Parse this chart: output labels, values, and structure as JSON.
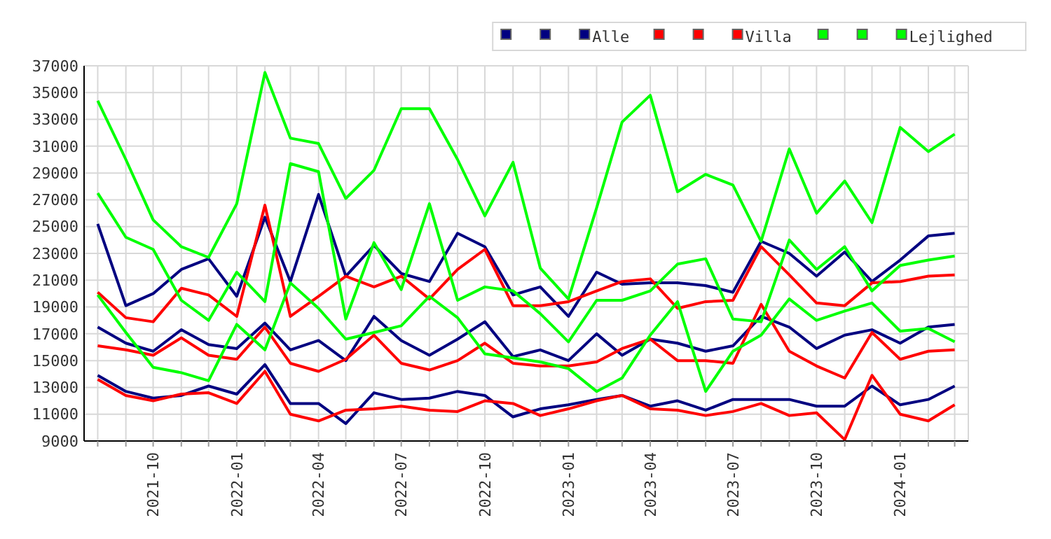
{
  "chart_data": {
    "type": "line",
    "x": [
      "2021-08",
      "2021-09",
      "2021-10",
      "2021-11",
      "2021-12",
      "2022-01",
      "2022-02",
      "2022-03",
      "2022-04",
      "2022-05",
      "2022-06",
      "2022-07",
      "2022-08",
      "2022-09",
      "2022-10",
      "2022-11",
      "2022-12",
      "2023-01",
      "2023-02",
      "2023-03",
      "2023-04",
      "2023-05",
      "2023-06",
      "2023-07",
      "2023-08",
      "2023-09",
      "2023-10",
      "2023-11",
      "2023-12",
      "2024-01",
      "2024-02",
      "2024-03"
    ],
    "series": [
      {
        "color": "#000080",
        "values": [
          25200,
          19100,
          20000,
          21800,
          22600,
          19800,
          25700,
          20900,
          27400,
          21300,
          23600,
          21500,
          20900,
          24500,
          23500,
          19900,
          20500,
          18300,
          21600,
          20700,
          20800,
          20800,
          20600,
          20100,
          23900,
          23000,
          21300,
          23100,
          20900,
          22500,
          24300,
          24500
        ]
      },
      {
        "color": "#000080",
        "values": [
          17500,
          16300,
          15700,
          17300,
          16200,
          15900,
          17800,
          15800,
          16500,
          15000,
          18300,
          16500,
          15400,
          16600,
          17900,
          15300,
          15800,
          15000,
          17000,
          15400,
          16600,
          16300,
          15700,
          16100,
          18300,
          17500,
          15900,
          16900,
          17300,
          16300,
          17500,
          17700
        ]
      },
      {
        "name": "Alle",
        "color": "#000080",
        "values": [
          13900,
          12700,
          12200,
          12400,
          13100,
          12500,
          14700,
          11800,
          11800,
          10300,
          12600,
          12100,
          12200,
          12700,
          12400,
          10800,
          11400,
          11700,
          12100,
          12400,
          11600,
          12000,
          11300,
          12100,
          12100,
          12100,
          11600,
          11600,
          13100,
          11700,
          12100,
          13100
        ]
      },
      {
        "color": "#ff0000",
        "values": [
          20100,
          18200,
          17900,
          20400,
          19900,
          18300,
          26600,
          18300,
          19800,
          21300,
          20500,
          21300,
          19600,
          21800,
          23300,
          19100,
          19100,
          19400,
          20200,
          20900,
          21100,
          18900,
          19400,
          19500,
          23500,
          21400,
          19300,
          19100,
          20800,
          20900,
          21300,
          21400
        ]
      },
      {
        "color": "#ff0000",
        "values": [
          16100,
          15800,
          15400,
          16700,
          15400,
          15100,
          17500,
          14800,
          14200,
          15100,
          16900,
          14800,
          14300,
          15000,
          16300,
          14800,
          14600,
          14600,
          14900,
          15900,
          16600,
          15000,
          15000,
          14800,
          19200,
          15700,
          14600,
          13700,
          17100,
          15100,
          15700,
          15800
        ]
      },
      {
        "name": "Villa",
        "color": "#ff0000",
        "values": [
          13600,
          12400,
          12000,
          12500,
          12600,
          11800,
          14200,
          11000,
          10500,
          11300,
          11400,
          11600,
          11300,
          11200,
          12000,
          11800,
          10900,
          11400,
          12000,
          12400,
          11400,
          11300,
          10900,
          11200,
          11800,
          10900,
          11100,
          9100,
          13900,
          11000,
          10500,
          11700
        ]
      },
      {
        "color": "#00ff00",
        "values": [
          34400,
          30000,
          25500,
          23500,
          22700,
          26700,
          36500,
          31600,
          31200,
          27100,
          29200,
          33800,
          33800,
          30000,
          25800,
          29800,
          21900,
          19600,
          26400,
          32800,
          34800,
          27600,
          28900,
          28100,
          23900,
          30800,
          26000,
          28400,
          25300,
          32400,
          30600,
          31900
        ]
      },
      {
        "color": "#00ff00",
        "values": [
          27500,
          24200,
          23300,
          19500,
          18000,
          21600,
          19400,
          29700,
          29100,
          18100,
          23800,
          20300,
          26700,
          19500,
          20500,
          20200,
          18500,
          16400,
          19500,
          19500,
          20200,
          22200,
          22600,
          18100,
          17900,
          24000,
          21800,
          23500,
          20200,
          22100,
          22500,
          22800
        ]
      },
      {
        "name": "Lejlighed",
        "color": "#00ff00",
        "values": [
          19900,
          17100,
          14500,
          14100,
          13500,
          17700,
          15800,
          20800,
          18900,
          16600,
          17100,
          17600,
          19800,
          18200,
          15500,
          15200,
          14900,
          14400,
          12700,
          13700,
          16900,
          19400,
          12700,
          15700,
          16900,
          19600,
          18000,
          18700,
          19300,
          17200,
          17400,
          16400
        ]
      }
    ],
    "xlim": [
      "2021-07-17",
      "2024-03-16"
    ],
    "xticks": [
      {
        "value": "2021-08",
        "label": null
      },
      {
        "value": "2021-09",
        "label": null
      },
      {
        "value": "2021-10",
        "label": "2021-10"
      },
      {
        "value": "2021-11",
        "label": null
      },
      {
        "value": "2021-12",
        "label": null
      },
      {
        "value": "2022-01",
        "label": "2022-01"
      },
      {
        "value": "2022-02",
        "label": null
      },
      {
        "value": "2022-03",
        "label": null
      },
      {
        "value": "2022-04",
        "label": "2022-04"
      },
      {
        "value": "2022-05",
        "label": null
      },
      {
        "value": "2022-06",
        "label": null
      },
      {
        "value": "2022-07",
        "label": "2022-07"
      },
      {
        "value": "2022-08",
        "label": null
      },
      {
        "value": "2022-09",
        "label": null
      },
      {
        "value": "2022-10",
        "label": "2022-10"
      },
      {
        "value": "2022-11",
        "label": null
      },
      {
        "value": "2022-12",
        "label": null
      },
      {
        "value": "2023-01",
        "label": "2023-01"
      },
      {
        "value": "2023-02",
        "label": null
      },
      {
        "value": "2023-03",
        "label": null
      },
      {
        "value": "2023-04",
        "label": "2023-04"
      },
      {
        "value": "2023-05",
        "label": null
      },
      {
        "value": "2023-06",
        "label": null
      },
      {
        "value": "2023-07",
        "label": "2023-07"
      },
      {
        "value": "2023-08",
        "label": null
      },
      {
        "value": "2023-09",
        "label": null
      },
      {
        "value": "2023-10",
        "label": "2023-10"
      },
      {
        "value": "2023-11",
        "label": null
      },
      {
        "value": "2023-12",
        "label": null
      },
      {
        "value": "2024-01",
        "label": "2024-01"
      },
      {
        "value": "2024-02",
        "label": null
      },
      {
        "value": "2024-03",
        "label": null
      }
    ],
    "ylim": [
      9000,
      37000
    ],
    "yticks": [
      9000,
      11000,
      13000,
      15000,
      17000,
      19000,
      21000,
      23000,
      25000,
      27000,
      29000,
      31000,
      33000,
      35000,
      37000
    ],
    "grid": true,
    "legend": "top right",
    "marker": "none",
    "line_style": "solid"
  }
}
